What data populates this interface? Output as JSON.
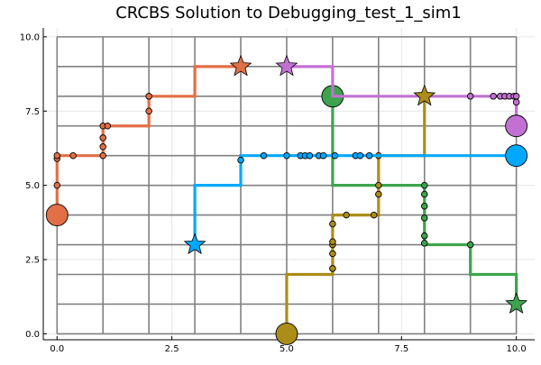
{
  "chart_data": {
    "type": "line",
    "title": "CRCBS Solution to Debugging_test_1_sim1",
    "xlabel": "",
    "ylabel": "",
    "xlim": [
      -0.3,
      10.4
    ],
    "ylim": [
      -0.2,
      10.3
    ],
    "x_ticks": [
      0.0,
      2.5,
      5.0,
      7.5,
      10.0
    ],
    "y_ticks": [
      0.0,
      2.5,
      5.0,
      7.5,
      10.0
    ],
    "x_tick_labels": [
      "0.0",
      "2.5",
      "5.0",
      "7.5",
      "10.0"
    ],
    "y_tick_labels": [
      "0.0",
      "2.5",
      "5.0",
      "7.5",
      "10.0"
    ],
    "grid": true,
    "legend": "none",
    "road_grid": {
      "vertical_x": [
        0,
        1,
        2,
        3,
        4,
        5,
        6,
        7,
        8,
        9,
        10
      ],
      "horizontal_y": [
        0,
        1,
        2,
        3,
        4,
        5,
        6,
        7,
        8,
        9,
        10
      ],
      "color": "#808080"
    },
    "series": [
      {
        "color": "#e26f46",
        "path": [
          [
            0,
            4
          ],
          [
            0,
            6
          ],
          [
            1,
            6
          ],
          [
            1,
            7
          ],
          [
            2,
            7
          ],
          [
            2,
            8
          ],
          [
            3,
            8
          ],
          [
            3,
            9
          ],
          [
            4,
            9
          ]
        ],
        "start": [
          0,
          4
        ],
        "goal": [
          4,
          9
        ],
        "waypoints": [
          [
            0,
            5
          ],
          [
            0,
            5.9
          ],
          [
            0,
            6
          ],
          [
            0.35,
            6
          ],
          [
            1,
            6
          ],
          [
            1,
            6.3
          ],
          [
            1,
            6.6
          ],
          [
            1,
            7
          ],
          [
            1.1,
            7
          ],
          [
            2,
            7.5
          ],
          [
            2,
            8
          ]
        ]
      },
      {
        "color": "#3da44d",
        "path": [
          [
            6,
            8
          ],
          [
            6,
            5
          ],
          [
            8,
            5
          ],
          [
            8,
            3
          ],
          [
            9,
            3
          ],
          [
            9,
            2
          ],
          [
            10,
            2
          ],
          [
            10,
            1
          ]
        ],
        "start": [
          6,
          8
        ],
        "goal": [
          10,
          1
        ],
        "waypoints": [
          [
            8,
            5
          ],
          [
            8,
            4.7
          ],
          [
            8,
            4.3
          ],
          [
            8,
            3.9
          ],
          [
            8,
            3.3
          ],
          [
            8,
            3.05
          ],
          [
            9,
            3
          ]
        ]
      },
      {
        "color": "#c271d2",
        "path": [
          [
            5,
            9
          ],
          [
            6,
            9
          ],
          [
            6,
            8
          ],
          [
            10,
            8
          ],
          [
            10,
            7
          ]
        ],
        "start": [
          10,
          7
        ],
        "goal": [
          5,
          9
        ],
        "waypoints": [
          [
            8,
            8
          ],
          [
            9,
            8
          ],
          [
            9.5,
            8
          ],
          [
            9.65,
            8
          ],
          [
            9.75,
            8
          ],
          [
            9.85,
            8
          ],
          [
            9.95,
            8
          ],
          [
            10,
            8
          ],
          [
            10,
            7.8
          ]
        ]
      },
      {
        "color": "#ac8d18",
        "path": [
          [
            5,
            0
          ],
          [
            5,
            2
          ],
          [
            6,
            2
          ],
          [
            6,
            4
          ],
          [
            7,
            4
          ],
          [
            7,
            6
          ],
          [
            8,
            6
          ],
          [
            8,
            8
          ]
        ],
        "start": [
          5,
          0
        ],
        "goal": [
          8,
          8
        ],
        "waypoints": [
          [
            6,
            2.2
          ],
          [
            6,
            2.7
          ],
          [
            6,
            3
          ],
          [
            6,
            3.1
          ],
          [
            6,
            3.7
          ],
          [
            6.3,
            4
          ],
          [
            6.9,
            4
          ],
          [
            7,
            4.7
          ],
          [
            7,
            5
          ],
          [
            7,
            6
          ]
        ]
      },
      {
        "color": "#00a9ff",
        "path": [
          [
            3,
            3
          ],
          [
            3,
            5
          ],
          [
            4,
            5
          ],
          [
            4,
            6
          ],
          [
            10,
            6
          ]
        ],
        "start": [
          10,
          6
        ],
        "goal": [
          3,
          3
        ],
        "waypoints": [
          [
            4,
            5.85
          ],
          [
            4.5,
            6
          ],
          [
            5,
            6
          ],
          [
            5.3,
            6
          ],
          [
            5.4,
            6
          ],
          [
            5.5,
            6
          ],
          [
            5.7,
            6
          ],
          [
            5.8,
            6
          ],
          [
            6.05,
            6
          ],
          [
            6.5,
            6
          ],
          [
            6.6,
            6
          ],
          [
            6.8,
            6
          ]
        ]
      }
    ]
  }
}
